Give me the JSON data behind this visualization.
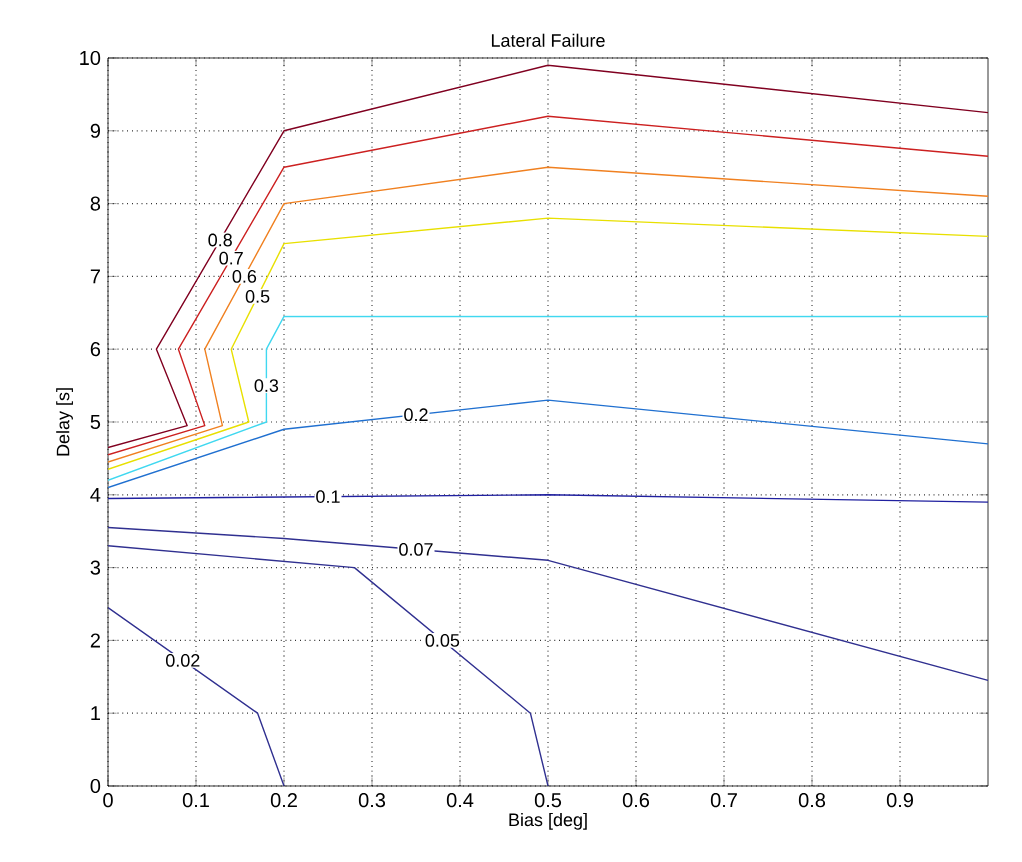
{
  "chart_data": {
    "type": "line",
    "title": "Lateral Failure",
    "xlabel": "Bias [deg]",
    "ylabel": "Delay [s]",
    "xlim": [
      0,
      1
    ],
    "ylim": [
      0,
      10
    ],
    "xticks": [
      0,
      0.1,
      0.2,
      0.3,
      0.4,
      0.5,
      0.6,
      0.7,
      0.8,
      0.9
    ],
    "yticks": [
      0,
      1,
      2,
      3,
      4,
      5,
      6,
      7,
      8,
      9,
      10
    ],
    "grid": true,
    "legend": false,
    "marker": "none",
    "line_style": "solid",
    "series": [
      {
        "name": "0.8",
        "color": "#800020",
        "x": [
          0,
          0.09,
          0.055,
          0.2,
          0.5,
          1.0
        ],
        "values": [
          4.65,
          4.95,
          6.0,
          9.0,
          9.9,
          9.25
        ]
      },
      {
        "name": "0.7",
        "color": "#cc2020",
        "x": [
          0,
          0.11,
          0.08,
          0.2,
          0.5,
          1.0
        ],
        "values": [
          4.55,
          4.95,
          6.0,
          8.5,
          9.2,
          8.65
        ]
      },
      {
        "name": "0.6",
        "color": "#f08020",
        "x": [
          0,
          0.13,
          0.11,
          0.2,
          0.5,
          1.0
        ],
        "values": [
          4.45,
          4.95,
          6.0,
          8.0,
          8.5,
          8.1
        ]
      },
      {
        "name": "0.5",
        "color": "#e8e000",
        "x": [
          0,
          0.16,
          0.14,
          0.2,
          0.5,
          1.0
        ],
        "values": [
          4.35,
          5.0,
          6.0,
          7.45,
          7.8,
          7.55
        ]
      },
      {
        "name": "0.3",
        "color": "#40d8f0",
        "x": [
          0,
          0.18,
          0.18,
          0.2,
          1.0
        ],
        "values": [
          4.2,
          5.0,
          6.0,
          6.45,
          6.45
        ]
      },
      {
        "name": "0.2",
        "color": "#2070d0",
        "x": [
          0,
          0.2,
          0.5,
          1.0
        ],
        "values": [
          4.1,
          4.9,
          5.3,
          4.7
        ]
      },
      {
        "name": "0.1",
        "color": "#2020a0",
        "x": [
          0,
          0.5,
          1.0
        ],
        "values": [
          3.95,
          4.0,
          3.9
        ]
      },
      {
        "name": "0.07",
        "color": "#303090",
        "x": [
          0,
          0.2,
          0.5,
          1.0
        ],
        "values": [
          3.55,
          3.4,
          3.1,
          1.45
        ]
      },
      {
        "name": "0.05",
        "color": "#303090",
        "x": [
          0,
          0.28,
          0.48,
          0.5
        ],
        "values": [
          3.3,
          3.0,
          1.0,
          0
        ]
      },
      {
        "name": "0.02",
        "color": "#303090",
        "x": [
          0,
          0.17,
          0.2
        ],
        "values": [
          2.45,
          1.0,
          0
        ]
      }
    ]
  }
}
